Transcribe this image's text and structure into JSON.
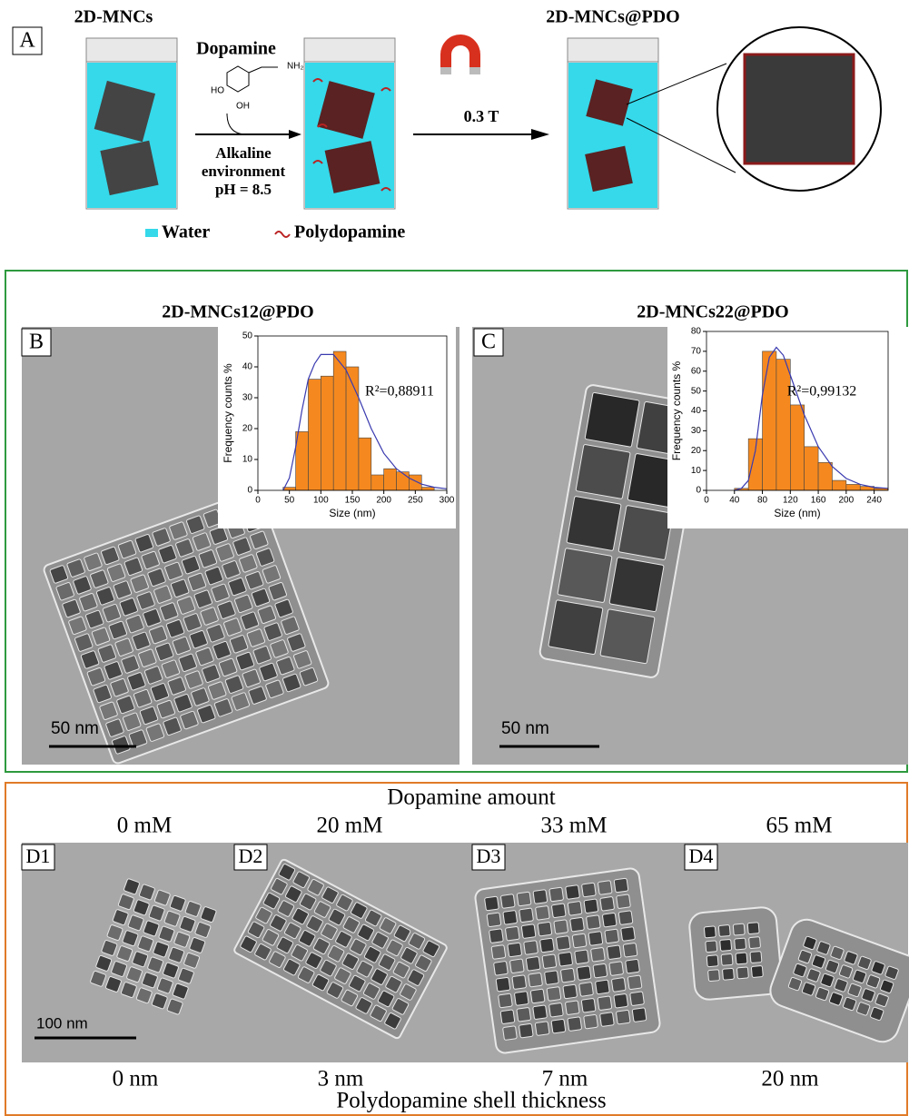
{
  "panel_a": {
    "label": "A",
    "start_label": "2D-MNCs",
    "reagent": "Dopamine",
    "amine": "NH₂",
    "hydroxyl_1": "HO",
    "hydroxyl_2": "OH",
    "conditions": [
      "Alkaline",
      "environment",
      "pH = 8.5"
    ],
    "field": "0.3 T",
    "product_label": "2D-MNCs@PDO",
    "legend": [
      "Water",
      "Polydopamine"
    ]
  },
  "panel_b": {
    "label": "B",
    "title": "2D-MNCs12@PDO",
    "scale_bar": "50 nm"
  },
  "panel_c": {
    "label": "C",
    "title": "2D-MNCs22@PDO",
    "scale_bar": "50 nm"
  },
  "panel_d": {
    "heading": "Dopamine amount",
    "footer": "Polydopamine shell thickness",
    "scale_bar": "100 nm",
    "panels": [
      {
        "label": "D1",
        "amount": "0 mM",
        "thickness": "0 nm"
      },
      {
        "label": "D2",
        "amount": "20 mM",
        "thickness": "3 nm"
      },
      {
        "label": "D3",
        "amount": "33 mM",
        "thickness": "7 nm"
      },
      {
        "label": "D4",
        "amount": "65 mM",
        "thickness": "20 nm"
      }
    ]
  },
  "chart_data": [
    {
      "type": "histogram",
      "xlabel": "Size (nm)",
      "ylabel": "Frequency counts %",
      "annotation": "R²=0,88911",
      "color": "#f5891f",
      "bins": [
        40,
        60,
        80,
        100,
        120,
        140,
        160,
        180,
        200,
        220,
        240,
        260,
        280
      ],
      "values": [
        1,
        19,
        36,
        37,
        45,
        40,
        17,
        5,
        7,
        6,
        5,
        1
      ],
      "xlim": [
        0,
        300
      ],
      "ylim": [
        0,
        50
      ],
      "xticks": [
        0,
        50,
        100,
        150,
        200,
        250,
        300
      ],
      "yticks": [
        0,
        10,
        20,
        30,
        40,
        50
      ],
      "fit": {
        "color": "#3a3ab0",
        "x": [
          40,
          50,
          60,
          70,
          80,
          90,
          100,
          120,
          140,
          160,
          180,
          200,
          220,
          240,
          260,
          280,
          300
        ],
        "values": [
          0,
          4,
          14,
          26,
          36,
          41,
          44,
          44,
          39,
          30,
          20,
          12,
          7,
          4,
          2,
          1,
          0.5
        ]
      }
    },
    {
      "type": "histogram",
      "xlabel": "Size (nm)",
      "ylabel": "Frequency counts %",
      "annotation": "R²=0,99132",
      "color": "#f5891f",
      "bins": [
        40,
        60,
        80,
        100,
        120,
        140,
        160,
        180,
        200,
        220,
        240,
        260
      ],
      "values": [
        1,
        26,
        70,
        66,
        43,
        22,
        14,
        5,
        3,
        2,
        1
      ],
      "xlim": [
        0,
        260
      ],
      "ylim": [
        0,
        80
      ],
      "xticks": [
        0,
        40,
        80,
        120,
        160,
        200,
        240
      ],
      "yticks": [
        0,
        10,
        20,
        30,
        40,
        50,
        60,
        70,
        80
      ],
      "fit": {
        "color": "#3a3ab0",
        "x": [
          40,
          50,
          60,
          70,
          80,
          90,
          100,
          110,
          120,
          140,
          160,
          180,
          200,
          220,
          240,
          260
        ],
        "values": [
          0,
          1,
          5,
          20,
          48,
          67,
          72,
          68,
          58,
          38,
          22,
          12,
          6,
          3,
          1.5,
          1
        ]
      }
    }
  ]
}
